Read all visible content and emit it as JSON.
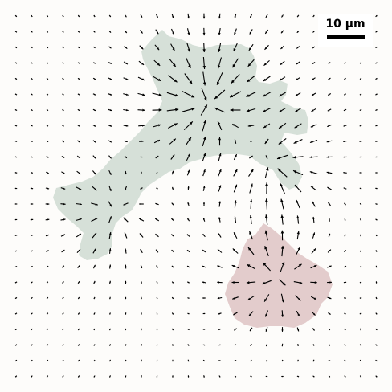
{
  "scale_bar": {
    "label": "10 μm"
  },
  "colors": {
    "background": "#fdfcfa",
    "cell_left": "#d6e0d8",
    "cell_right": "#e3cccc",
    "arrow": "#000000"
  },
  "shapes": {
    "cell_left": "cell",
    "cell_right": "cell"
  },
  "icons": {
    "scale": "scale-bar-icon",
    "arrow": "vector-arrow-icon"
  }
}
